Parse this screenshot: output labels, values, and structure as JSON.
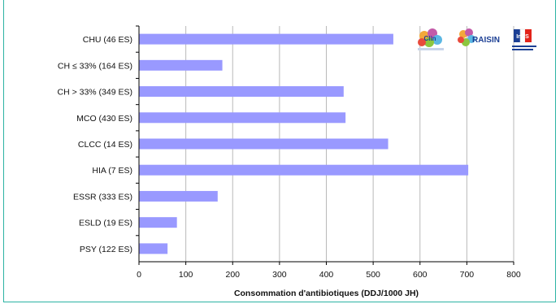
{
  "chart_data": {
    "type": "bar",
    "orientation": "horizontal",
    "categories": [
      "CHU (46 ES)",
      "CH ≤ 33% (164 ES)",
      "CH > 33% (349 ES)",
      "MCO (430 ES)",
      "CLCC (14 ES)",
      "HIA (7 ES)",
      "ESSR (333 ES)",
      "ESLD (19 ES)",
      "PSY (122 ES)"
    ],
    "values": [
      543,
      178,
      437,
      441,
      532,
      703,
      168,
      81,
      61
    ],
    "xlabel": "Consommation d'antibiotiques (DDJ/1000 JH)",
    "xlim": [
      0,
      800
    ],
    "xticks": [
      0,
      100,
      200,
      300,
      400,
      500,
      600,
      700,
      800
    ],
    "grid": "vertical",
    "bar_color": "#9999ff"
  },
  "logos": [
    {
      "name": "cclin-sud-ouest-logo",
      "text": "C.Clin"
    },
    {
      "name": "raisin-logo",
      "text": "RAISIN"
    },
    {
      "name": "invs-logo",
      "text": "InVS"
    }
  ]
}
